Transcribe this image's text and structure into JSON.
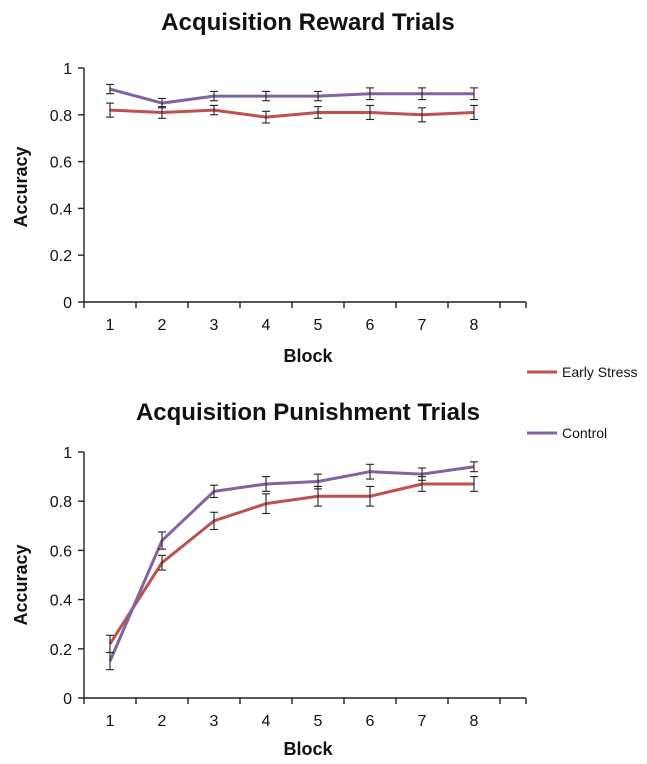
{
  "legend": [
    {
      "name": "Early Stress",
      "color": "#c0504d"
    },
    {
      "name": "Control",
      "color": "#8064a2"
    }
  ],
  "chart_data": [
    {
      "type": "line",
      "title": "Acquisition Reward Trials",
      "xlabel": "Block",
      "ylabel": "Accuracy",
      "x": [
        1,
        2,
        3,
        4,
        5,
        6,
        7,
        8
      ],
      "ylim": [
        0,
        1
      ],
      "yticks": [
        "0",
        "0.2",
        "0.4",
        "0.6",
        "0.8",
        "1"
      ],
      "yticks_values": [
        0,
        0.2,
        0.4,
        0.6,
        0.8,
        1
      ],
      "grid": false,
      "series": [
        {
          "name": "Early Stress",
          "color": "#c0504d",
          "values": [
            0.82,
            0.81,
            0.82,
            0.79,
            0.81,
            0.81,
            0.8,
            0.81
          ],
          "errors": [
            0.03,
            0.025,
            0.02,
            0.025,
            0.025,
            0.03,
            0.03,
            0.03
          ]
        },
        {
          "name": "Control",
          "color": "#8064a2",
          "values": [
            0.91,
            0.85,
            0.88,
            0.88,
            0.88,
            0.89,
            0.89,
            0.89
          ],
          "errors": [
            0.02,
            0.02,
            0.02,
            0.02,
            0.02,
            0.025,
            0.025,
            0.025
          ]
        }
      ]
    },
    {
      "type": "line",
      "title": "Acquisition Punishment Trials",
      "xlabel": "Block",
      "ylabel": "Accuracy",
      "x": [
        1,
        2,
        3,
        4,
        5,
        6,
        7,
        8
      ],
      "ylim": [
        0,
        1
      ],
      "yticks": [
        "0",
        "0.2",
        "0.4",
        "0.6",
        "0.8",
        "1"
      ],
      "yticks_values": [
        0,
        0.2,
        0.4,
        0.6,
        0.8,
        1
      ],
      "grid": false,
      "series": [
        {
          "name": "Early Stress",
          "color": "#c0504d",
          "values": [
            0.22,
            0.55,
            0.72,
            0.79,
            0.82,
            0.82,
            0.87,
            0.87
          ],
          "errors": [
            0.035,
            0.03,
            0.035,
            0.04,
            0.04,
            0.04,
            0.03,
            0.03
          ]
        },
        {
          "name": "Control",
          "color": "#8064a2",
          "values": [
            0.15,
            0.64,
            0.84,
            0.87,
            0.88,
            0.92,
            0.91,
            0.94
          ],
          "errors": [
            0.035,
            0.035,
            0.025,
            0.03,
            0.03,
            0.03,
            0.025,
            0.02
          ]
        }
      ]
    }
  ]
}
